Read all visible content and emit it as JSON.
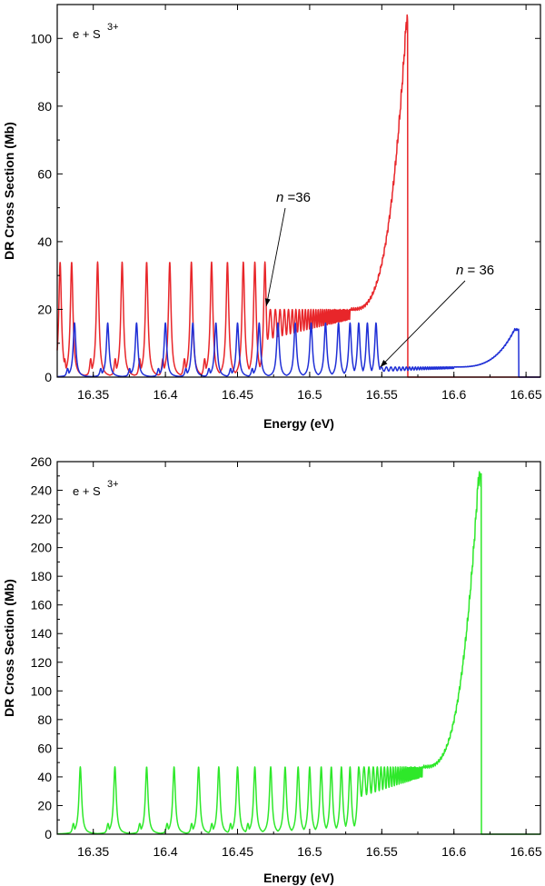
{
  "chart_data": [
    {
      "type": "line",
      "title": "",
      "xlabel": "Energy (eV)",
      "ylabel": "DR Cross Section (Mb)",
      "xlim": [
        16.325,
        16.66
      ],
      "ylim": [
        0,
        110
      ],
      "xticks": [
        16.35,
        16.4,
        16.45,
        16.5,
        16.55,
        16.6,
        16.65
      ],
      "xtick_labels": [
        "16.35",
        "16.4",
        "16.45",
        "16.5",
        "16.55",
        "16.6",
        "16.65"
      ],
      "yticks": [
        0,
        20,
        40,
        60,
        80,
        100
      ],
      "ytick_labels": [
        "0",
        "20",
        "40",
        "60",
        "80",
        "100"
      ],
      "legend": {
        "base": "e + S",
        "sup": "3+",
        "placement": "top-left"
      },
      "series": [
        {
          "name": "red",
          "color": "#e8262a",
          "peak_centers": [
            16.327,
            16.335,
            16.353,
            16.37,
            16.387,
            16.403,
            16.418,
            16.432,
            16.443,
            16.454,
            16.462,
            16.469
          ],
          "peak_height": 34,
          "dense_region": [
            16.469,
            16.528,
            20
          ],
          "rise": {
            "start": 16.528,
            "start_value": 20,
            "peak_energy": 16.567,
            "peak_value": 105
          },
          "drop_energy": 16.568
        },
        {
          "name": "blue",
          "color": "#1f2fd6",
          "peak_centers": [
            16.337,
            16.36,
            16.38,
            16.4,
            16.419,
            16.435,
            16.45,
            16.465,
            16.478,
            16.49,
            16.501,
            16.511,
            16.52,
            16.528,
            16.534,
            16.54,
            16.546
          ],
          "peak_height": 16,
          "dense_region": [
            16.546,
            16.6,
            3
          ],
          "rise": {
            "start": 16.6,
            "start_value": 3,
            "peak_energy": 16.642,
            "peak_value": 14
          },
          "drop_energy": 16.645
        }
      ],
      "annotations": [
        {
          "italic": "n",
          "text": " =36",
          "target_x": 16.47,
          "target_y": 21
        },
        {
          "italic": "n",
          "text": " = 36",
          "target_x": 16.549,
          "target_y": 3
        }
      ]
    },
    {
      "type": "line",
      "title": "",
      "xlabel": "Energy (eV)",
      "ylabel": "DR Cross Section (Mb)",
      "xlim": [
        16.325,
        16.66
      ],
      "ylim": [
        0,
        260
      ],
      "xticks": [
        16.35,
        16.4,
        16.45,
        16.5,
        16.55,
        16.6,
        16.65
      ],
      "xtick_labels": [
        "16.35",
        "16.4",
        "16.45",
        "16.5",
        "16.55",
        "16.6",
        "16.65"
      ],
      "yticks": [
        0,
        20,
        40,
        60,
        80,
        100,
        120,
        140,
        160,
        180,
        200,
        220,
        240,
        260
      ],
      "ytick_labels": [
        "0",
        "20",
        "40",
        "60",
        "80",
        "100",
        "120",
        "140",
        "160",
        "180",
        "200",
        "220",
        "240",
        "260"
      ],
      "legend": {
        "base": "e + S",
        "sup": "3+",
        "placement": "top-left"
      },
      "series": [
        {
          "name": "green",
          "color": "#2ee82a",
          "peak_centers": [
            16.341,
            16.365,
            16.387,
            16.406,
            16.423,
            16.437,
            16.45,
            16.462,
            16.473,
            16.483,
            16.492,
            16.5,
            16.508,
            16.515,
            16.522,
            16.528,
            16.534
          ],
          "peak_height": 47,
          "dense_region": [
            16.534,
            16.578,
            47
          ],
          "rise": {
            "start": 16.578,
            "start_value": 47,
            "peak_energy": 16.617,
            "peak_value": 249
          },
          "drop_energy": 16.619
        }
      ],
      "annotations": []
    }
  ]
}
